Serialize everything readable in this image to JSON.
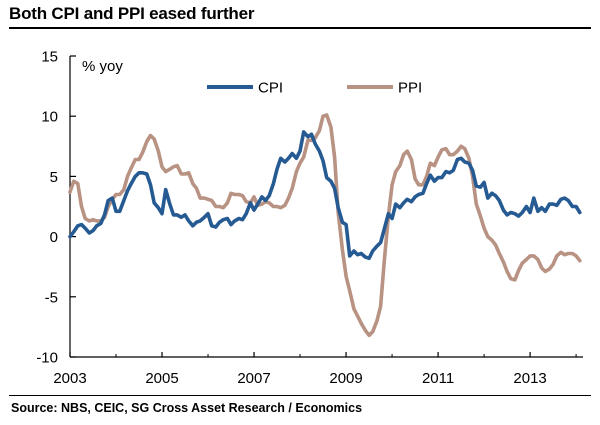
{
  "header": {
    "title": "Both CPI and PPI eased further"
  },
  "footer": {
    "source": "Source: NBS, CEIC, SG Cross Asset Research / Economics"
  },
  "colors": {
    "cpi": "#255a92",
    "ppi": "#b89282",
    "axis": "#000000",
    "text": "#000000"
  },
  "chart_data": {
    "type": "line",
    "title": "Both CPI and PPI eased further",
    "unit_label": "% yoy",
    "xlabel": "",
    "ylabel": "% yoy",
    "xlim": [
      2003.0,
      2014.15
    ],
    "ylim": [
      -10,
      15
    ],
    "x_ticks": [
      2003,
      2005,
      2007,
      2009,
      2011,
      2013
    ],
    "y_ticks": [
      -10,
      -5,
      0,
      5,
      10,
      15
    ],
    "grid": false,
    "legend": {
      "placement": "top-center",
      "entries": [
        "CPI",
        "PPI"
      ]
    },
    "series": [
      {
        "name": "CPI",
        "key": "cpi",
        "points": [
          [
            2003.0,
            0.0
          ],
          [
            2003.08,
            0.4
          ],
          [
            2003.17,
            0.9
          ],
          [
            2003.25,
            1.0
          ],
          [
            2003.33,
            0.7
          ],
          [
            2003.42,
            0.3
          ],
          [
            2003.5,
            0.5
          ],
          [
            2003.58,
            0.9
          ],
          [
            2003.67,
            1.1
          ],
          [
            2003.75,
            1.8
          ],
          [
            2003.83,
            3.0
          ],
          [
            2003.92,
            3.2
          ],
          [
            2004.0,
            2.1
          ],
          [
            2004.08,
            2.1
          ],
          [
            2004.17,
            3.0
          ],
          [
            2004.25,
            3.8
          ],
          [
            2004.33,
            4.4
          ],
          [
            2004.42,
            5.0
          ],
          [
            2004.5,
            5.3
          ],
          [
            2004.58,
            5.3
          ],
          [
            2004.67,
            5.2
          ],
          [
            2004.75,
            4.3
          ],
          [
            2004.83,
            2.8
          ],
          [
            2004.92,
            2.4
          ],
          [
            2005.0,
            1.9
          ],
          [
            2005.08,
            3.9
          ],
          [
            2005.17,
            2.7
          ],
          [
            2005.25,
            1.8
          ],
          [
            2005.33,
            1.8
          ],
          [
            2005.42,
            1.6
          ],
          [
            2005.5,
            1.8
          ],
          [
            2005.58,
            1.3
          ],
          [
            2005.67,
            0.9
          ],
          [
            2005.75,
            1.2
          ],
          [
            2005.83,
            1.3
          ],
          [
            2005.92,
            1.6
          ],
          [
            2006.0,
            1.9
          ],
          [
            2006.08,
            0.9
          ],
          [
            2006.17,
            0.8
          ],
          [
            2006.25,
            1.2
          ],
          [
            2006.33,
            1.4
          ],
          [
            2006.42,
            1.5
          ],
          [
            2006.5,
            1.0
          ],
          [
            2006.58,
            1.3
          ],
          [
            2006.67,
            1.5
          ],
          [
            2006.75,
            1.4
          ],
          [
            2006.83,
            1.9
          ],
          [
            2006.92,
            2.8
          ],
          [
            2007.0,
            2.2
          ],
          [
            2007.08,
            2.7
          ],
          [
            2007.17,
            3.3
          ],
          [
            2007.25,
            3.0
          ],
          [
            2007.33,
            3.4
          ],
          [
            2007.42,
            4.4
          ],
          [
            2007.5,
            5.6
          ],
          [
            2007.58,
            6.5
          ],
          [
            2007.67,
            6.2
          ],
          [
            2007.75,
            6.5
          ],
          [
            2007.83,
            6.9
          ],
          [
            2007.92,
            6.5
          ],
          [
            2008.0,
            7.1
          ],
          [
            2008.08,
            8.7
          ],
          [
            2008.17,
            8.3
          ],
          [
            2008.25,
            8.5
          ],
          [
            2008.33,
            7.7
          ],
          [
            2008.42,
            7.1
          ],
          [
            2008.5,
            6.3
          ],
          [
            2008.58,
            4.9
          ],
          [
            2008.67,
            4.6
          ],
          [
            2008.75,
            4.0
          ],
          [
            2008.83,
            2.4
          ],
          [
            2008.92,
            1.2
          ],
          [
            2009.0,
            1.0
          ],
          [
            2009.08,
            -1.6
          ],
          [
            2009.17,
            -1.2
          ],
          [
            2009.25,
            -1.5
          ],
          [
            2009.33,
            -1.4
          ],
          [
            2009.42,
            -1.7
          ],
          [
            2009.5,
            -1.8
          ],
          [
            2009.58,
            -1.2
          ],
          [
            2009.67,
            -0.8
          ],
          [
            2009.75,
            -0.5
          ],
          [
            2009.83,
            0.6
          ],
          [
            2009.92,
            1.9
          ],
          [
            2010.0,
            1.5
          ],
          [
            2010.08,
            2.7
          ],
          [
            2010.17,
            2.4
          ],
          [
            2010.25,
            2.8
          ],
          [
            2010.33,
            3.1
          ],
          [
            2010.42,
            2.9
          ],
          [
            2010.5,
            3.3
          ],
          [
            2010.58,
            3.5
          ],
          [
            2010.67,
            3.6
          ],
          [
            2010.75,
            4.4
          ],
          [
            2010.83,
            5.1
          ],
          [
            2010.92,
            4.6
          ],
          [
            2011.0,
            4.9
          ],
          [
            2011.08,
            4.9
          ],
          [
            2011.17,
            5.4
          ],
          [
            2011.25,
            5.3
          ],
          [
            2011.33,
            5.5
          ],
          [
            2011.42,
            6.4
          ],
          [
            2011.5,
            6.5
          ],
          [
            2011.58,
            6.2
          ],
          [
            2011.67,
            6.1
          ],
          [
            2011.75,
            5.5
          ],
          [
            2011.83,
            4.2
          ],
          [
            2011.92,
            4.1
          ],
          [
            2012.0,
            4.5
          ],
          [
            2012.08,
            3.2
          ],
          [
            2012.17,
            3.6
          ],
          [
            2012.25,
            3.4
          ],
          [
            2012.33,
            3.0
          ],
          [
            2012.42,
            2.2
          ],
          [
            2012.5,
            1.8
          ],
          [
            2012.58,
            2.0
          ],
          [
            2012.67,
            1.9
          ],
          [
            2012.75,
            1.7
          ],
          [
            2012.83,
            2.0
          ],
          [
            2012.92,
            2.5
          ],
          [
            2013.0,
            2.0
          ],
          [
            2013.08,
            3.2
          ],
          [
            2013.17,
            2.1
          ],
          [
            2013.25,
            2.4
          ],
          [
            2013.33,
            2.1
          ],
          [
            2013.42,
            2.7
          ],
          [
            2013.5,
            2.7
          ],
          [
            2013.58,
            2.6
          ],
          [
            2013.67,
            3.1
          ],
          [
            2013.75,
            3.2
          ],
          [
            2013.83,
            3.0
          ],
          [
            2013.92,
            2.5
          ],
          [
            2014.0,
            2.5
          ],
          [
            2014.08,
            2.0
          ]
        ]
      },
      {
        "name": "PPI",
        "key": "ppi",
        "points": [
          [
            2003.0,
            3.7
          ],
          [
            2003.08,
            4.6
          ],
          [
            2003.17,
            4.4
          ],
          [
            2003.25,
            2.5
          ],
          [
            2003.33,
            1.5
          ],
          [
            2003.42,
            1.3
          ],
          [
            2003.5,
            1.4
          ],
          [
            2003.58,
            1.3
          ],
          [
            2003.67,
            1.3
          ],
          [
            2003.75,
            1.6
          ],
          [
            2003.83,
            2.5
          ],
          [
            2003.92,
            3.1
          ],
          [
            2004.0,
            3.5
          ],
          [
            2004.08,
            3.5
          ],
          [
            2004.17,
            3.9
          ],
          [
            2004.25,
            5.0
          ],
          [
            2004.33,
            5.7
          ],
          [
            2004.42,
            6.4
          ],
          [
            2004.5,
            6.4
          ],
          [
            2004.58,
            7.0
          ],
          [
            2004.67,
            7.9
          ],
          [
            2004.75,
            8.4
          ],
          [
            2004.83,
            8.1
          ],
          [
            2004.92,
            7.1
          ],
          [
            2005.0,
            5.8
          ],
          [
            2005.08,
            5.4
          ],
          [
            2005.17,
            5.6
          ],
          [
            2005.25,
            5.8
          ],
          [
            2005.33,
            5.9
          ],
          [
            2005.42,
            5.2
          ],
          [
            2005.5,
            5.2
          ],
          [
            2005.58,
            5.3
          ],
          [
            2005.67,
            4.4
          ],
          [
            2005.75,
            4.0
          ],
          [
            2005.83,
            3.2
          ],
          [
            2005.92,
            3.2
          ],
          [
            2006.0,
            3.1
          ],
          [
            2006.08,
            3.0
          ],
          [
            2006.17,
            2.5
          ],
          [
            2006.25,
            2.5
          ],
          [
            2006.33,
            2.4
          ],
          [
            2006.42,
            2.8
          ],
          [
            2006.5,
            3.6
          ],
          [
            2006.58,
            3.5
          ],
          [
            2006.67,
            3.5
          ],
          [
            2006.75,
            3.4
          ],
          [
            2006.83,
            2.9
          ],
          [
            2006.92,
            2.8
          ],
          [
            2007.0,
            3.3
          ],
          [
            2007.08,
            2.6
          ],
          [
            2007.17,
            2.7
          ],
          [
            2007.25,
            2.9
          ],
          [
            2007.33,
            2.8
          ],
          [
            2007.42,
            2.5
          ],
          [
            2007.5,
            2.5
          ],
          [
            2007.58,
            2.4
          ],
          [
            2007.67,
            2.6
          ],
          [
            2007.75,
            3.2
          ],
          [
            2007.83,
            4.0
          ],
          [
            2007.92,
            5.4
          ],
          [
            2008.0,
            6.1
          ],
          [
            2008.08,
            6.6
          ],
          [
            2008.17,
            8.0
          ],
          [
            2008.25,
            8.0
          ],
          [
            2008.33,
            8.2
          ],
          [
            2008.42,
            8.8
          ],
          [
            2008.5,
            10.0
          ],
          [
            2008.58,
            10.1
          ],
          [
            2008.67,
            9.1
          ],
          [
            2008.75,
            6.6
          ],
          [
            2008.83,
            2.0
          ],
          [
            2008.92,
            -1.1
          ],
          [
            2009.0,
            -3.3
          ],
          [
            2009.08,
            -4.5
          ],
          [
            2009.17,
            -6.0
          ],
          [
            2009.25,
            -6.6
          ],
          [
            2009.33,
            -7.2
          ],
          [
            2009.42,
            -7.8
          ],
          [
            2009.5,
            -8.2
          ],
          [
            2009.58,
            -7.9
          ],
          [
            2009.67,
            -7.0
          ],
          [
            2009.75,
            -5.8
          ],
          [
            2009.83,
            -2.1
          ],
          [
            2009.92,
            1.7
          ],
          [
            2010.0,
            4.3
          ],
          [
            2010.08,
            5.4
          ],
          [
            2010.17,
            5.9
          ],
          [
            2010.25,
            6.8
          ],
          [
            2010.33,
            7.1
          ],
          [
            2010.42,
            6.4
          ],
          [
            2010.5,
            4.8
          ],
          [
            2010.58,
            4.3
          ],
          [
            2010.67,
            4.3
          ],
          [
            2010.75,
            5.0
          ],
          [
            2010.83,
            6.1
          ],
          [
            2010.92,
            5.9
          ],
          [
            2011.0,
            6.6
          ],
          [
            2011.08,
            7.2
          ],
          [
            2011.17,
            7.3
          ],
          [
            2011.25,
            6.8
          ],
          [
            2011.33,
            6.8
          ],
          [
            2011.42,
            7.1
          ],
          [
            2011.5,
            7.5
          ],
          [
            2011.58,
            7.3
          ],
          [
            2011.67,
            6.5
          ],
          [
            2011.75,
            5.0
          ],
          [
            2011.83,
            2.7
          ],
          [
            2011.92,
            1.7
          ],
          [
            2012.0,
            0.7
          ],
          [
            2012.08,
            0.0
          ],
          [
            2012.17,
            -0.3
          ],
          [
            2012.25,
            -0.7
          ],
          [
            2012.33,
            -1.4
          ],
          [
            2012.42,
            -2.1
          ],
          [
            2012.5,
            -2.9
          ],
          [
            2012.58,
            -3.5
          ],
          [
            2012.67,
            -3.6
          ],
          [
            2012.75,
            -2.8
          ],
          [
            2012.83,
            -2.2
          ],
          [
            2012.92,
            -1.9
          ],
          [
            2013.0,
            -1.6
          ],
          [
            2013.08,
            -1.6
          ],
          [
            2013.17,
            -1.9
          ],
          [
            2013.25,
            -2.6
          ],
          [
            2013.33,
            -2.9
          ],
          [
            2013.42,
            -2.7
          ],
          [
            2013.5,
            -2.3
          ],
          [
            2013.58,
            -1.6
          ],
          [
            2013.67,
            -1.3
          ],
          [
            2013.75,
            -1.5
          ],
          [
            2013.83,
            -1.4
          ],
          [
            2013.92,
            -1.4
          ],
          [
            2014.0,
            -1.6
          ],
          [
            2014.08,
            -2.0
          ]
        ]
      }
    ]
  }
}
